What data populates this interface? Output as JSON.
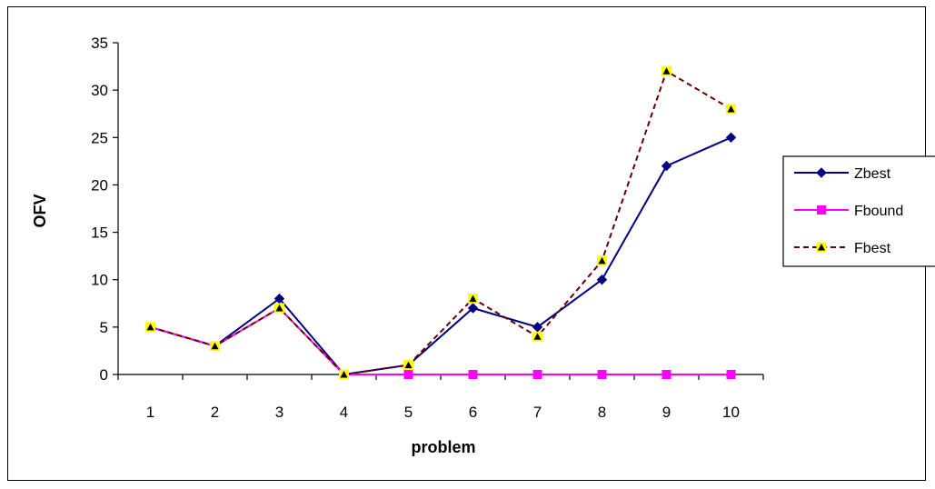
{
  "chart_data": {
    "type": "line",
    "title": "",
    "xlabel": "problem",
    "ylabel": "OFV",
    "categories": [
      "1",
      "2",
      "3",
      "4",
      "5",
      "6",
      "7",
      "8",
      "9",
      "10"
    ],
    "yticks": [
      "0",
      "5",
      "10",
      "15",
      "20",
      "25",
      "30",
      "35"
    ],
    "ylim": [
      0,
      35
    ],
    "grid": false,
    "legend_position": "right",
    "series": [
      {
        "name": "Zbest",
        "values": [
          5,
          3,
          8,
          0,
          1,
          7,
          5,
          10,
          22,
          25
        ],
        "color": "#000080",
        "line": "solid",
        "marker": "diamond",
        "marker_color": "#000080"
      },
      {
        "name": "Fbound",
        "values": [
          5,
          3,
          7,
          0,
          0,
          0,
          0,
          0,
          0,
          0
        ],
        "color": "#ff00ff",
        "line": "solid",
        "marker": "square",
        "marker_color": "#ff00ff"
      },
      {
        "name": "Fbest",
        "values": [
          5,
          3,
          7,
          0,
          1,
          8,
          4,
          12,
          32,
          28
        ],
        "color": "#660000",
        "line": "dashed",
        "marker": "triangle",
        "marker_color": "#ffff00"
      }
    ]
  }
}
